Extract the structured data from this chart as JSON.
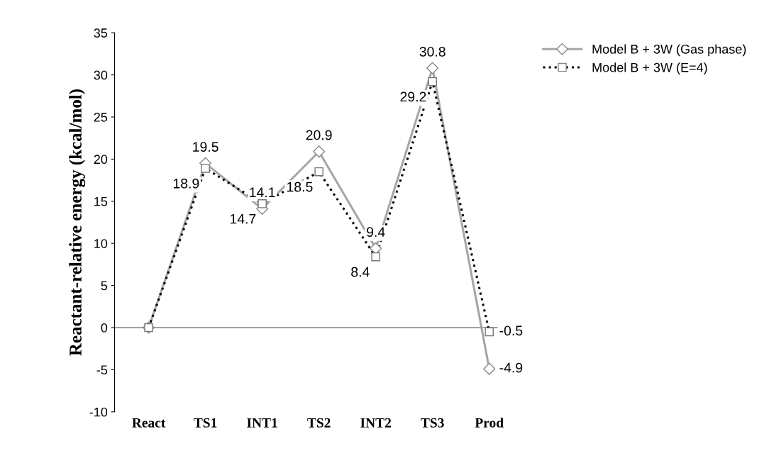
{
  "chart_data": {
    "type": "line",
    "ylabel": "Reactant-relative energy (kcal/mol)",
    "categories": [
      "React",
      "TS1",
      "INT1",
      "TS2",
      "INT2",
      "TS3",
      "Prod"
    ],
    "series": [
      {
        "name": "Model B + 3W (Gas phase)",
        "color": "#a6a6a6",
        "marker": "diamond",
        "line_style": "solid",
        "values": [
          0,
          19.5,
          14.1,
          20.9,
          9.4,
          30.8,
          -4.9
        ],
        "value_labels": [
          null,
          "19.5",
          "14.1",
          "20.9",
          "9.4",
          "30.8",
          "-4.9"
        ]
      },
      {
        "name": "Model B + 3W (E=4)",
        "color": "#000000",
        "marker": "square",
        "line_style": "dotted",
        "values": [
          0,
          18.9,
          14.7,
          18.5,
          8.4,
          29.2,
          -0.5
        ],
        "value_labels": [
          null,
          "18.9",
          "14.7",
          "18.5",
          "8.4",
          "29.2",
          "-0.5"
        ]
      }
    ],
    "ylim": [
      -10,
      35
    ],
    "yticks": [
      -10,
      -5,
      0,
      5,
      10,
      15,
      20,
      25,
      30,
      35
    ],
    "ref_lines": [
      {
        "axis": "y",
        "value": 0,
        "color": "#808080",
        "line_style": "solid"
      }
    ],
    "grid": false,
    "legend": "top right"
  }
}
